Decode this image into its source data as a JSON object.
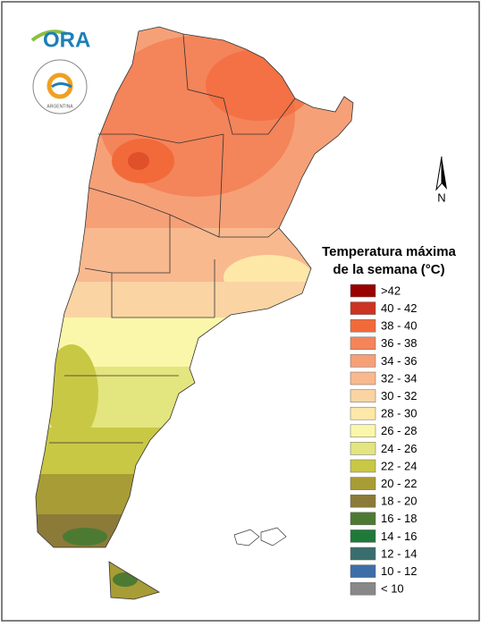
{
  "logo": {
    "text": "ORA",
    "seal_text": "ARGENTINA"
  },
  "north_arrow": "N",
  "legend": {
    "title": [
      "Temperatura máxima",
      "de la semana (°C)"
    ],
    "items": [
      {
        "label": ">42",
        "color": "#990000"
      },
      {
        "label": "40 - 42",
        "color": "#cc3322"
      },
      {
        "label": "38 - 40",
        "color": "#f26a3a"
      },
      {
        "label": "36 - 38",
        "color": "#f4845a"
      },
      {
        "label": "34 - 36",
        "color": "#f6a078"
      },
      {
        "label": "32 - 34",
        "color": "#f8b98f"
      },
      {
        "label": "30 - 32",
        "color": "#fbd4a4"
      },
      {
        "label": "28 - 30",
        "color": "#fde8a8"
      },
      {
        "label": "26 - 28",
        "color": "#fbf7aa"
      },
      {
        "label": "24 - 26",
        "color": "#e3e57e"
      },
      {
        "label": "22 - 24",
        "color": "#c9c845"
      },
      {
        "label": "20 - 22",
        "color": "#a89c36"
      },
      {
        "label": "18 - 20",
        "color": "#8c7a39"
      },
      {
        "label": "16 - 18",
        "color": "#4d7a32"
      },
      {
        "label": "14 - 16",
        "color": "#1f7a3a"
      },
      {
        "label": "12 - 14",
        "color": "#3a6e6e"
      },
      {
        "label": "10 - 12",
        "color": "#3d6ea8"
      },
      {
        "label": "< 10",
        "color": "#888888"
      }
    ]
  }
}
